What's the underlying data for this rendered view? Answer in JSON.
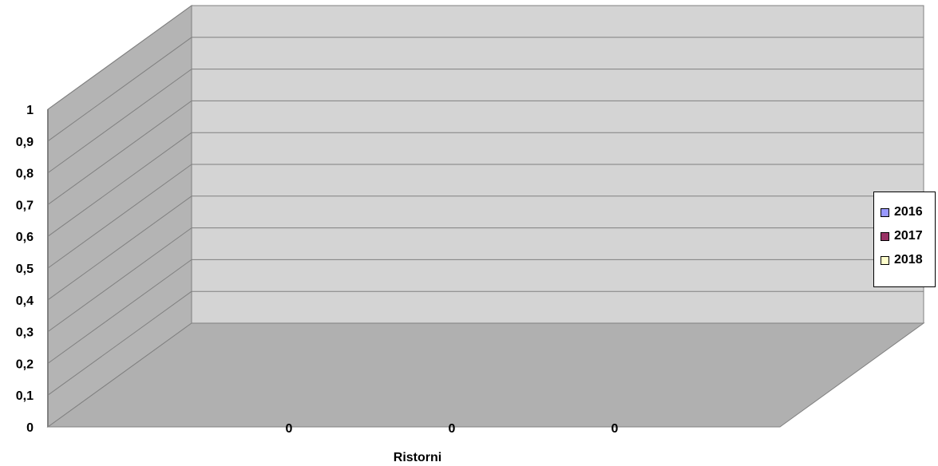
{
  "chart_data": {
    "type": "bar",
    "title": "",
    "xlabel": "Ristorni",
    "ylabel": "",
    "ylim": [
      0,
      1
    ],
    "yticks": [
      "0",
      "0,1",
      "0,2",
      "0,3",
      "0,4",
      "0,5",
      "0,6",
      "0,7",
      "0,8",
      "0,9",
      "1"
    ],
    "categories": [
      ""
    ],
    "series": [
      {
        "name": "2016",
        "values": [
          0
        ],
        "color": "#9999ff",
        "data_label": "0"
      },
      {
        "name": "2017",
        "values": [
          0
        ],
        "color": "#993366",
        "data_label": "0"
      },
      {
        "name": "2018",
        "values": [
          0
        ],
        "color": "#ffffcc",
        "data_label": "0"
      }
    ],
    "grid": true,
    "legend": "right",
    "style": "3d",
    "colors": {
      "back_wall": "#d4d4d4",
      "side_wall": "#b4b4b4",
      "floor": "#b0b0b0",
      "gridline": "#808080"
    }
  }
}
